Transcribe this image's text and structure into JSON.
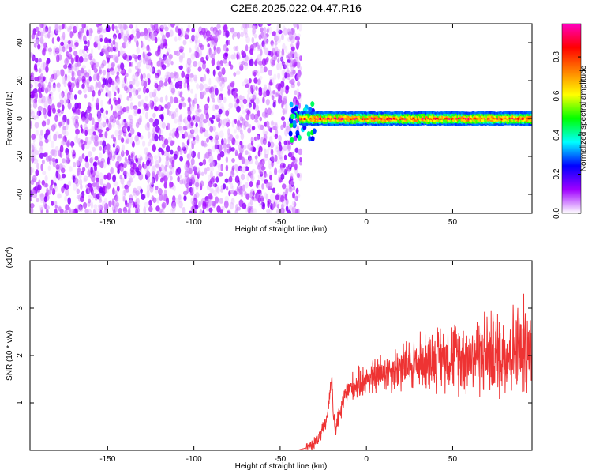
{
  "title": "C2E6.2025.022.04.47.R16",
  "chart_data": [
    {
      "type": "heatmap",
      "xlabel": "Height of straight line (km)",
      "ylabel": "Frequency (Hz)",
      "xlim": [
        -195,
        96
      ],
      "ylim": [
        -50,
        50
      ],
      "xticks": [
        -150,
        -100,
        -50,
        0,
        50
      ],
      "yticks": [
        -40,
        -20,
        0,
        20,
        40
      ],
      "colorbar": {
        "label": "Normalized spectral amplitude",
        "range": [
          0,
          0.97
        ],
        "ticks": [
          0.0,
          0.2,
          0.4,
          0.6,
          0.8
        ],
        "colormap": [
          "#ffffff",
          "#a000ff",
          "#0000ff",
          "#00ffff",
          "#00ff00",
          "#ffff00",
          "#ff8000",
          "#ff0000",
          "#ff00c0"
        ]
      },
      "regions": [
        {
          "name": "noise",
          "x_range": [
            -195,
            -38
          ],
          "freq_range": [
            -50,
            50
          ],
          "amplitude_range": [
            0.02,
            0.12
          ]
        },
        {
          "name": "signal",
          "x_range": [
            -38,
            96
          ],
          "freq_center": 0,
          "freq_halfwidth": 3,
          "amplitude_range": [
            0.2,
            0.97
          ]
        }
      ]
    },
    {
      "type": "line",
      "xlabel": "Height of straight line (km)",
      "ylabel": "SNR (10 * v/v)",
      "ylabel_scale": "(x10",
      "ylabel_scale_exp": "4",
      "ylabel_scale_close": ")",
      "xlim": [
        -195,
        96
      ],
      "ylim": [
        0,
        4
      ],
      "xticks": [
        -150,
        -100,
        -50,
        0,
        50
      ],
      "yticks": [
        1,
        2,
        3
      ],
      "color": "#ee3333",
      "series": [
        {
          "x": [
            -195,
            -40,
            -35,
            -30,
            -27,
            -24,
            -22,
            -20,
            -19,
            -18,
            -15,
            -12,
            -10,
            -5,
            0,
            5,
            10,
            15,
            20,
            25,
            30,
            35,
            40,
            45,
            50,
            55,
            60,
            65,
            70,
            75,
            80,
            85,
            90,
            93,
            96
          ],
          "y": [
            0.0,
            0.0,
            0.05,
            0.15,
            0.3,
            0.5,
            0.9,
            1.6,
            0.6,
            0.45,
            0.8,
            1.2,
            1.3,
            1.4,
            1.5,
            1.55,
            1.65,
            1.7,
            1.75,
            1.8,
            1.85,
            1.9,
            1.95,
            2.0,
            2.0,
            2.0,
            2.0,
            2.05,
            2.05,
            2.05,
            2.05,
            2.1,
            2.1,
            2.3,
            2.0
          ]
        }
      ]
    }
  ]
}
